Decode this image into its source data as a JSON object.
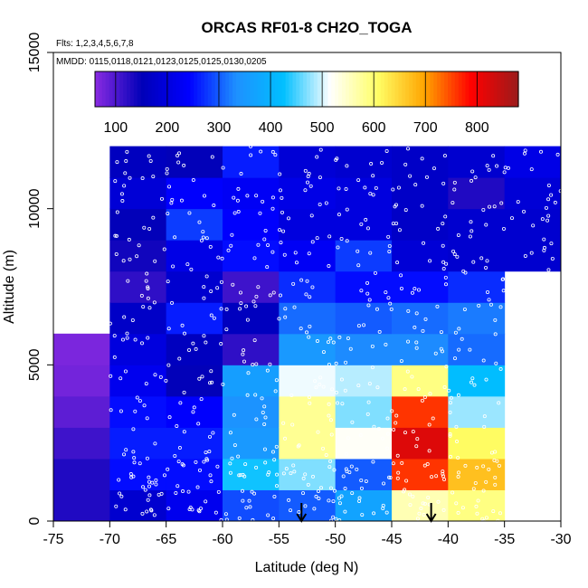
{
  "chart_data": {
    "type": "heatmap",
    "title": "ORCAS RF01-8 CH2O_TOGA",
    "subtitle_flights": "Flts: 1,2,3,4,5,6,7,8",
    "subtitle_dates": "MMDD: 0115,0118,0121,0123,0125,0125,0130,0205",
    "xlabel": "Latitude (deg N)",
    "ylabel": "Altitude (m)",
    "xlim": [
      -75,
      -30
    ],
    "ylim": [
      0,
      15000
    ],
    "x_ticks": [
      -75,
      -70,
      -65,
      -60,
      -55,
      -50,
      -45,
      -40,
      -35,
      -30
    ],
    "y_ticks": [
      0,
      5000,
      10000,
      15000
    ],
    "colorbar": {
      "range": [
        60,
        880
      ],
      "ticks": [
        100,
        200,
        300,
        400,
        500,
        600,
        700,
        800
      ],
      "palette": [
        "#8a2be2",
        "#0000b8",
        "#0000ff",
        "#1e90ff",
        "#00bfff",
        "#ffffff",
        "#ffff66",
        "#ffa500",
        "#ff0000",
        "#9b1b1b"
      ]
    },
    "bin_width_deg": 5,
    "bin_height_m": 1000,
    "cells": [
      {
        "lon": -75,
        "alt": 0,
        "v": 130
      },
      {
        "lon": -75,
        "alt": 1000,
        "v": 130
      },
      {
        "lon": -75,
        "alt": 2000,
        "v": 110
      },
      {
        "lon": -75,
        "alt": 3000,
        "v": 90
      },
      {
        "lon": -75,
        "alt": 4000,
        "v": 75
      },
      {
        "lon": -75,
        "alt": 5000,
        "v": 70
      },
      {
        "lon": -70,
        "alt": 0,
        "v": 180
      },
      {
        "lon": -70,
        "alt": 1000,
        "v": 250
      },
      {
        "lon": -70,
        "alt": 2000,
        "v": 260
      },
      {
        "lon": -70,
        "alt": 3000,
        "v": 250
      },
      {
        "lon": -70,
        "alt": 4000,
        "v": 220
      },
      {
        "lon": -70,
        "alt": 5000,
        "v": 200
      },
      {
        "lon": -70,
        "alt": 6000,
        "v": 170
      },
      {
        "lon": -70,
        "alt": 7000,
        "v": 120
      },
      {
        "lon": -70,
        "alt": 8000,
        "v": 140
      },
      {
        "lon": -70,
        "alt": 9000,
        "v": 150
      },
      {
        "lon": -70,
        "alt": 10000,
        "v": 190
      },
      {
        "lon": -70,
        "alt": 11000,
        "v": 160
      },
      {
        "lon": -65,
        "alt": 0,
        "v": 220
      },
      {
        "lon": -65,
        "alt": 1000,
        "v": 250
      },
      {
        "lon": -65,
        "alt": 2000,
        "v": 260
      },
      {
        "lon": -65,
        "alt": 3000,
        "v": 240
      },
      {
        "lon": -65,
        "alt": 4000,
        "v": 150
      },
      {
        "lon": -65,
        "alt": 5000,
        "v": 160
      },
      {
        "lon": -65,
        "alt": 6000,
        "v": 260
      },
      {
        "lon": -65,
        "alt": 7000,
        "v": 180
      },
      {
        "lon": -65,
        "alt": 8000,
        "v": 210
      },
      {
        "lon": -65,
        "alt": 9000,
        "v": 280
      },
      {
        "lon": -65,
        "alt": 10000,
        "v": 240
      },
      {
        "lon": -65,
        "alt": 11000,
        "v": 150
      },
      {
        "lon": -60,
        "alt": 0,
        "v": 290
      },
      {
        "lon": -60,
        "alt": 1000,
        "v": 430
      },
      {
        "lon": -60,
        "alt": 2000,
        "v": 350
      },
      {
        "lon": -60,
        "alt": 3000,
        "v": 340
      },
      {
        "lon": -60,
        "alt": 4000,
        "v": 360
      },
      {
        "lon": -60,
        "alt": 5000,
        "v": 120
      },
      {
        "lon": -60,
        "alt": 6000,
        "v": 160
      },
      {
        "lon": -60,
        "alt": 7000,
        "v": 110
      },
      {
        "lon": -60,
        "alt": 8000,
        "v": 250
      },
      {
        "lon": -60,
        "alt": 9000,
        "v": 240
      },
      {
        "lon": -60,
        "alt": 10000,
        "v": 230
      },
      {
        "lon": -60,
        "alt": 11000,
        "v": 260
      },
      {
        "lon": -55,
        "alt": 0,
        "v": 300
      },
      {
        "lon": -55,
        "alt": 1000,
        "v": 470
      },
      {
        "lon": -55,
        "alt": 2000,
        "v": 580
      },
      {
        "lon": -55,
        "alt": 3000,
        "v": 580
      },
      {
        "lon": -55,
        "alt": 4000,
        "v": 510
      },
      {
        "lon": -55,
        "alt": 5000,
        "v": 350
      },
      {
        "lon": -55,
        "alt": 6000,
        "v": 310
      },
      {
        "lon": -55,
        "alt": 7000,
        "v": 270
      },
      {
        "lon": -55,
        "alt": 8000,
        "v": 230
      },
      {
        "lon": -55,
        "alt": 9000,
        "v": 200
      },
      {
        "lon": -55,
        "alt": 10000,
        "v": 210
      },
      {
        "lon": -55,
        "alt": 11000,
        "v": 190
      },
      {
        "lon": -50,
        "alt": 0,
        "v": 370
      },
      {
        "lon": -50,
        "alt": 1000,
        "v": 300
      },
      {
        "lon": -50,
        "alt": 2000,
        "v": 520
      },
      {
        "lon": -50,
        "alt": 3000,
        "v": 470
      },
      {
        "lon": -50,
        "alt": 4000,
        "v": 490
      },
      {
        "lon": -50,
        "alt": 5000,
        "v": 330
      },
      {
        "lon": -50,
        "alt": 6000,
        "v": 300
      },
      {
        "lon": -50,
        "alt": 7000,
        "v": 250
      },
      {
        "lon": -50,
        "alt": 8000,
        "v": 280
      },
      {
        "lon": -50,
        "alt": 9000,
        "v": 200
      },
      {
        "lon": -50,
        "alt": 10000,
        "v": 200
      },
      {
        "lon": -50,
        "alt": 11000,
        "v": 180
      },
      {
        "lon": -45,
        "alt": 0,
        "v": 560
      },
      {
        "lon": -45,
        "alt": 1000,
        "v": 760
      },
      {
        "lon": -45,
        "alt": 2000,
        "v": 820
      },
      {
        "lon": -45,
        "alt": 3000,
        "v": 760
      },
      {
        "lon": -45,
        "alt": 4000,
        "v": 590
      },
      {
        "lon": -45,
        "alt": 5000,
        "v": 330
      },
      {
        "lon": -45,
        "alt": 6000,
        "v": 310
      },
      {
        "lon": -45,
        "alt": 7000,
        "v": 250
      },
      {
        "lon": -45,
        "alt": 8000,
        "v": 190
      },
      {
        "lon": -45,
        "alt": 9000,
        "v": 170
      },
      {
        "lon": -45,
        "alt": 10000,
        "v": 170
      },
      {
        "lon": -45,
        "alt": 11000,
        "v": 170
      },
      {
        "lon": -40,
        "alt": 0,
        "v": 590
      },
      {
        "lon": -40,
        "alt": 1000,
        "v": 670
      },
      {
        "lon": -40,
        "alt": 2000,
        "v": 610
      },
      {
        "lon": -40,
        "alt": 3000,
        "v": 480
      },
      {
        "lon": -40,
        "alt": 4000,
        "v": 420
      },
      {
        "lon": -40,
        "alt": 5000,
        "v": 310
      },
      {
        "lon": -40,
        "alt": 6000,
        "v": 320
      },
      {
        "lon": -40,
        "alt": 7000,
        "v": 270
      },
      {
        "lon": -40,
        "alt": 8000,
        "v": 180
      },
      {
        "lon": -40,
        "alt": 9000,
        "v": 180
      },
      {
        "lon": -40,
        "alt": 10000,
        "v": 130
      },
      {
        "lon": -40,
        "alt": 11000,
        "v": 180
      },
      {
        "lon": -35,
        "alt": 8000,
        "v": 180
      },
      {
        "lon": -35,
        "alt": 9000,
        "v": 180
      },
      {
        "lon": -35,
        "alt": 10000,
        "v": 190
      },
      {
        "lon": -35,
        "alt": 11000,
        "v": 210
      }
    ],
    "arrows_lat": [
      -53,
      -41.5
    ]
  }
}
